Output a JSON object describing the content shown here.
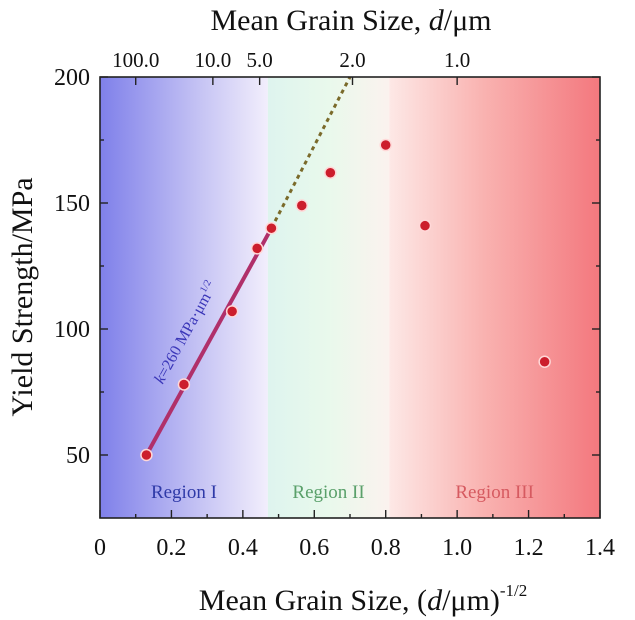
{
  "chart_data": {
    "type": "scatter",
    "title": "",
    "xlabel": {
      "prefix": "Mean Grain Size, (",
      "italic": "d",
      "unit": "/μm)",
      "sup": "-1/2"
    },
    "x2label": {
      "prefix": "Mean Grain Size, ",
      "italic": "d",
      "unit": "/μm"
    },
    "ylabel": "Yield Strength/MPa",
    "xlim": [
      0,
      1.4
    ],
    "ylim": [
      25,
      200
    ],
    "x_ticks": [
      "0",
      "0.2",
      "0.4",
      "0.6",
      "0.8",
      "1.0",
      "1.2",
      "1.4"
    ],
    "y_ticks": [
      "50",
      "100",
      "150",
      "200"
    ],
    "x2_ticks": [
      {
        "label": "100.0",
        "x": 0.1
      },
      {
        "label": "10.0",
        "x": 0.316
      },
      {
        "label": "5.0",
        "x": 0.447
      },
      {
        "label": "2.0",
        "x": 0.707
      },
      {
        "label": "1.0",
        "x": 1.0
      }
    ],
    "regions": [
      {
        "name": "Region I",
        "x_range": [
          0,
          0.47
        ],
        "color": "#7f80ea",
        "text_color": "#2f3aa8"
      },
      {
        "name": "Region II",
        "x_range": [
          0.47,
          0.81
        ],
        "color": "#dff7ec",
        "text_color": "#5aa06a"
      },
      {
        "name": "Region III",
        "x_range": [
          0.81,
          1.4
        ],
        "color": "#f3787e",
        "text_color": "#d65a60"
      }
    ],
    "series": [
      {
        "marker_color": "#cc1e2c",
        "points": [
          {
            "x": 0.13,
            "y": 50
          },
          {
            "x": 0.235,
            "y": 78
          },
          {
            "x": 0.37,
            "y": 107
          },
          {
            "x": 0.44,
            "y": 132
          },
          {
            "x": 0.48,
            "y": 140
          },
          {
            "x": 0.565,
            "y": 149
          },
          {
            "x": 0.645,
            "y": 162
          },
          {
            "x": 0.8,
            "y": 173
          },
          {
            "x": 0.91,
            "y": 141
          },
          {
            "x": 1.245,
            "y": 87
          }
        ]
      }
    ],
    "fit_line": {
      "annotation_k": "k",
      "annotation_rest": "=260 MPa·μm",
      "annotation_sup": "1/2",
      "solid": [
        [
          0.13,
          50
        ],
        [
          0.48,
          140
        ]
      ],
      "dashed": [
        [
          0.48,
          140
        ],
        [
          0.7,
          200
        ]
      ],
      "color": "#b0306a",
      "dash_color": "#7a6a2a"
    }
  }
}
